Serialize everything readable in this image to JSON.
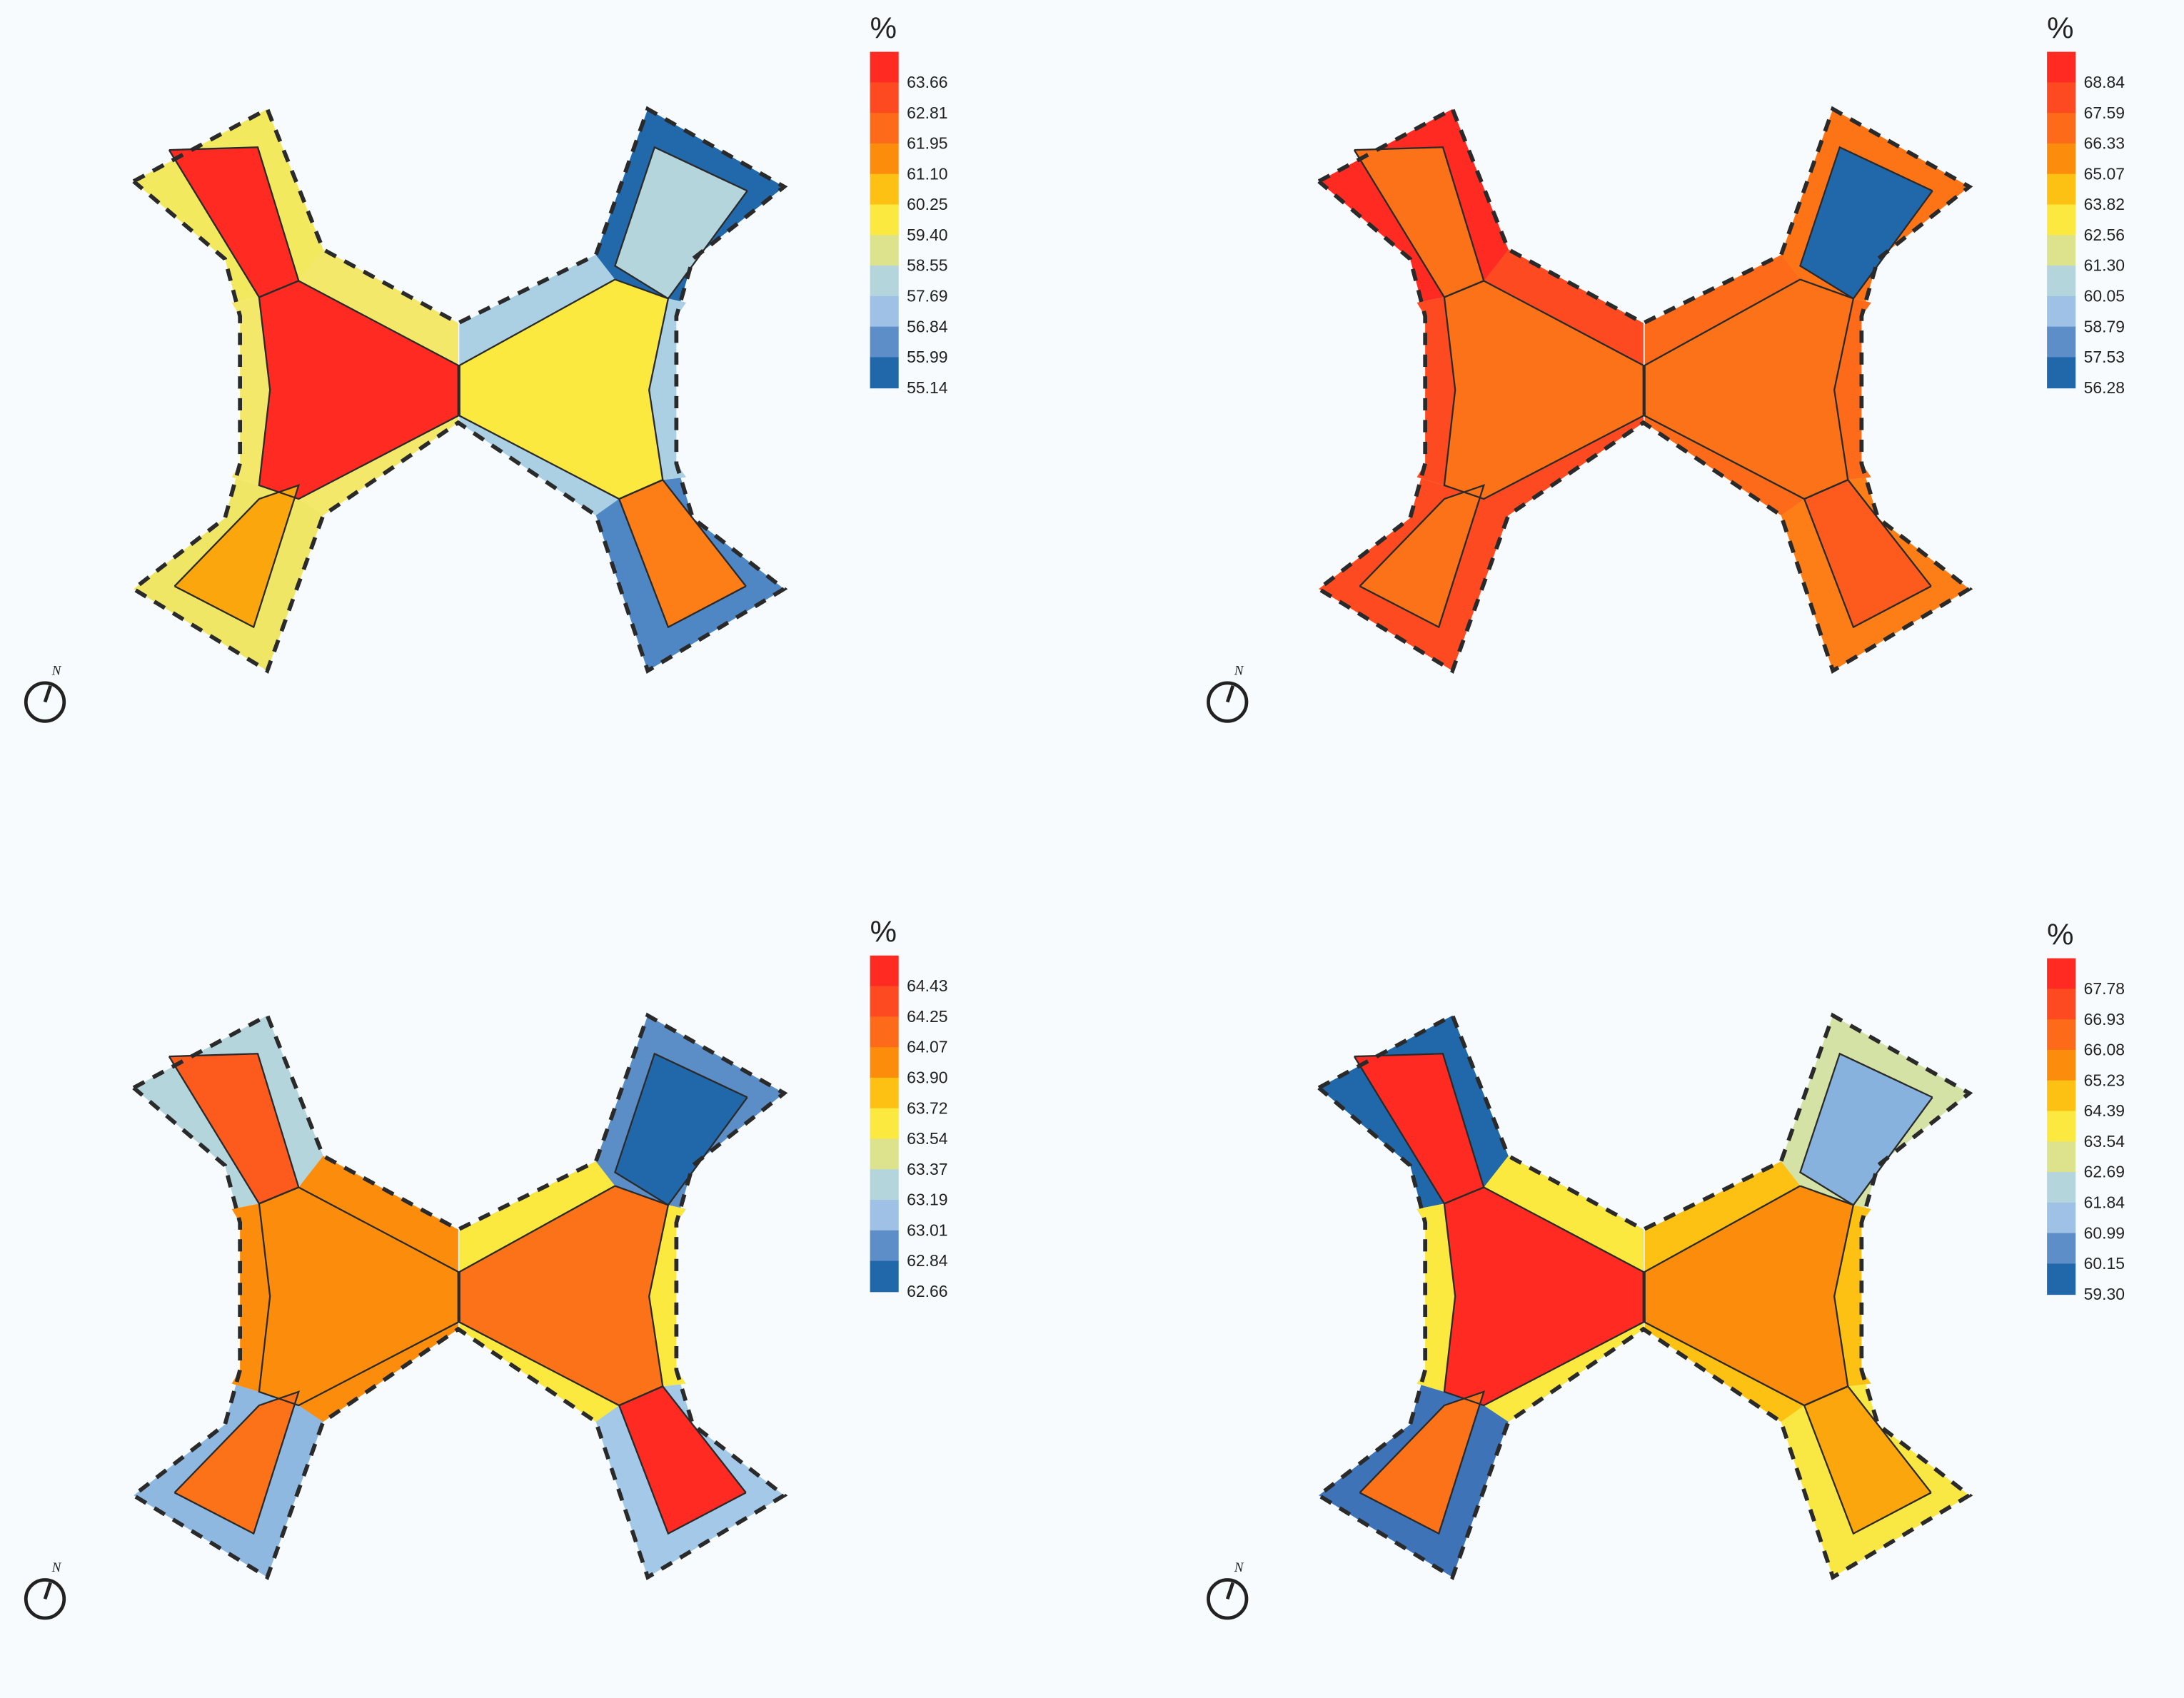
{
  "panels": [
    {
      "unit": "%",
      "legend_labels": [
        "63.66",
        "62.81",
        "61.95",
        "61.10",
        "60.25",
        "59.40",
        "58.55",
        "57.69",
        "56.84",
        "55.99",
        "55.14"
      ],
      "fills": {
        "wing_left": "#ff2a22",
        "wing_right": "#fce93f",
        "arm_tl": "#ff2a22",
        "arm_bl": "#fba60c",
        "arm_tr": "#b5d5dc",
        "arm_br": "#fd7e16",
        "border_tl": "#f3e95f",
        "border_bl": "#f0e666",
        "border_tr": "#2269ac",
        "border_br": "#4f86c4",
        "border_left_wing": "#f4e86a",
        "border_right_wing": "#abd0e4"
      }
    },
    {
      "unit": "%",
      "legend_labels": [
        "68.84",
        "67.59",
        "66.33",
        "65.07",
        "63.82",
        "62.56",
        "61.30",
        "60.05",
        "58.79",
        "57.53",
        "56.28"
      ],
      "fills": {
        "wing_left": "#fc7218",
        "wing_right": "#fc7218",
        "arm_tl": "#fc7218",
        "arm_bl": "#fc7218",
        "arm_tr": "#2168ab",
        "arm_br": "#fd5a1e",
        "border_tl": "#ff2a22",
        "border_bl": "#fd4a21",
        "border_tr": "#fd7416",
        "border_br": "#fd7e16",
        "border_left_wing": "#fd4a21",
        "border_right_wing": "#fd6a1a"
      }
    },
    {
      "unit": "%",
      "legend_labels": [
        "64.43",
        "64.25",
        "64.07",
        "63.90",
        "63.72",
        "63.54",
        "63.37",
        "63.19",
        "63.01",
        "62.84",
        "62.66"
      ],
      "fills": {
        "wing_left": "#fc8d0c",
        "wing_right": "#fc7218",
        "arm_tl": "#fd5a1e",
        "arm_bl": "#fc7218",
        "arm_tr": "#2168ab",
        "arm_br": "#ff2a22",
        "border_tl": "#b5d5dc",
        "border_bl": "#8fb8e0",
        "border_tr": "#5b8dc6",
        "border_br": "#a4c8e8",
        "border_left_wing": "#fc8d0c",
        "border_right_wing": "#fce93f"
      }
    },
    {
      "unit": "%",
      "legend_labels": [
        "67.78",
        "66.93",
        "66.08",
        "65.23",
        "64.39",
        "63.54",
        "62.69",
        "61.84",
        "60.99",
        "60.15",
        "59.30"
      ],
      "fills": {
        "wing_left": "#ff2a22",
        "wing_right": "#fc8d0c",
        "arm_tl": "#ff2a22",
        "arm_bl": "#fc7218",
        "arm_tr": "#87b2de",
        "arm_br": "#fba60c",
        "border_tl": "#2168ab",
        "border_bl": "#3f73b8",
        "border_tr": "#d5e2a6",
        "border_br": "#f9e843",
        "border_left_wing": "#fce93f",
        "border_right_wing": "#fcc113"
      }
    }
  ],
  "legend_colors": [
    "#ff2a22",
    "#fd4a21",
    "#fd6a1a",
    "#fc8d0c",
    "#fcc113",
    "#fce93f",
    "#dde38c",
    "#b5d5dc",
    "#9fc1e6",
    "#5d8ec8",
    "#2168ab"
  ]
}
